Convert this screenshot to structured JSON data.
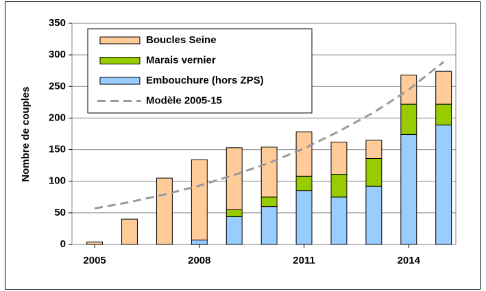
{
  "chart_data": {
    "type": "bar",
    "stacked": true,
    "y_label": "Nombre de couples",
    "x": [
      2005,
      2006,
      2007,
      2008,
      2009,
      2010,
      2011,
      2012,
      2013,
      2014,
      2015
    ],
    "xlim": [
      2004.35,
      2015.35
    ],
    "xticks": [
      2005,
      2008,
      2011,
      2014
    ],
    "ylim": [
      0,
      350
    ],
    "yticks": [
      0,
      50,
      100,
      150,
      200,
      250,
      300,
      350
    ],
    "grid": true,
    "legend": "upper-left",
    "series": [
      {
        "name": "Boucles Seine",
        "color": "#ffcc99",
        "values": [
          4,
          40,
          105,
          127,
          98,
          79,
          70,
          51,
          29,
          46,
          52
        ]
      },
      {
        "name": "Marais vernier",
        "color": "#99cc00",
        "values": [
          0,
          0,
          0,
          0,
          11,
          15,
          23,
          36,
          44,
          48,
          33
        ]
      },
      {
        "name": "Embouchure (hors ZPS)",
        "color": "#99ccff",
        "values": [
          0,
          0,
          0,
          7,
          44,
          60,
          85,
          75,
          92,
          174,
          189
        ]
      },
      {
        "name": "Modèle 2005-15",
        "color": "#999999",
        "type": "line",
        "dashed": true,
        "values": [
          57,
          67,
          79,
          93,
          110,
          129,
          152,
          179,
          209,
          245,
          289
        ]
      }
    ]
  }
}
